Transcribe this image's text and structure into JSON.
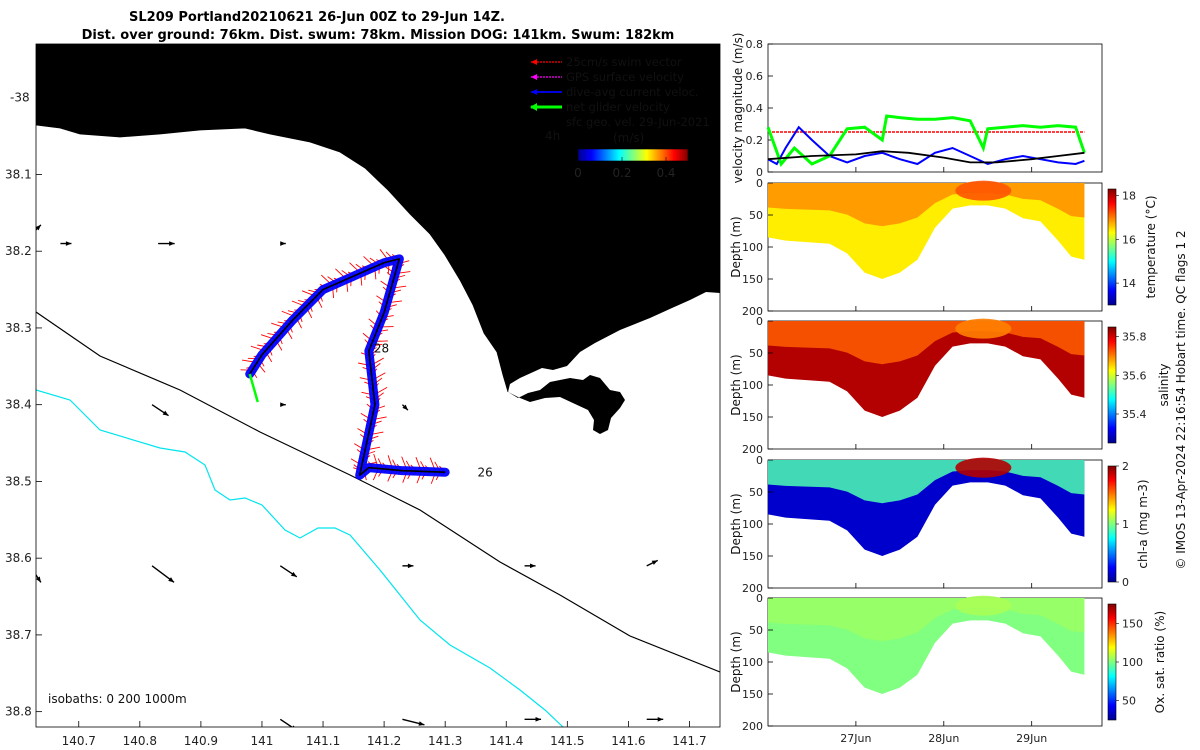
{
  "header": {
    "title_line1": "SL209 Portland20210621 26-Jun 00Z to 29-Jun 14Z.",
    "title_line2": "Dist. over ground: 76km. Dist. swum: 78km. Mission DOG: 141km. Swum: 182km"
  },
  "side_note": "© IMOS 13-Apr-2024 22:16:54 Hobart time. QC flags 1  2",
  "colors": {
    "land": "#F9C896",
    "swim": "#FF0000",
    "gps": "#FF00FF",
    "dive": "#0000FF",
    "net": "#00FF00",
    "sfc": "#000000",
    "isobath_200": "#000000",
    "isobath_1000": "#00E5EE"
  },
  "chart_data": [
    {
      "type": "map",
      "name": "track-map",
      "x_ticks": [
        "140.7",
        "140.8",
        "140.9",
        "141",
        "141.1",
        "141.2",
        "141.3",
        "141.4",
        "141.5",
        "141.6",
        "141.7"
      ],
      "y_ticks": [
        "-38",
        "38.1",
        "38.2",
        "38.3",
        "38.4",
        "38.5",
        "38.6",
        "38.7",
        "38.8"
      ],
      "xlim": [
        140.63,
        141.75
      ],
      "ylim": [
        -38.82,
        -37.93
      ],
      "legend": {
        "swim": "25cm/s swim vector",
        "gps": "GPS surface velocity",
        "dive": "dive-avg current veloc.",
        "net": "net glider velocity",
        "sfc": "sfc geo. vel. 29-Jun-2021"
      },
      "colorbar": {
        "label": "(m/s)",
        "ticks": [
          "0",
          "0.2",
          "0.4"
        ],
        "range": [
          0,
          0.5
        ],
        "interval_note": "4h"
      },
      "isobaths_label": "isobaths: 0   200  1000m",
      "day_labels": [
        {
          "text": "26",
          "lon": 141.33,
          "lat": -38.487
        },
        {
          "text": "28",
          "lon": 141.18,
          "lat": -38.327
        }
      ],
      "track": [
        [
          141.3,
          -38.488
        ],
        [
          141.23,
          -38.486
        ],
        [
          141.175,
          -38.482
        ],
        [
          141.16,
          -38.492
        ],
        [
          141.185,
          -38.4
        ],
        [
          141.175,
          -38.33
        ],
        [
          141.2,
          -38.28
        ],
        [
          141.225,
          -38.21
        ],
        [
          141.2,
          -38.215
        ],
        [
          141.1,
          -38.25
        ],
        [
          141.05,
          -38.29
        ],
        [
          141.0,
          -38.335
        ],
        [
          140.98,
          -38.36
        ]
      ],
      "current_arrows": [
        {
          "lon": 140.62,
          "lat": -38.18,
          "u": 0.02,
          "v": 0.02
        },
        {
          "lon": 140.67,
          "lat": -38.19,
          "u": 0.02,
          "v": 0.0
        },
        {
          "lon": 140.83,
          "lat": -38.19,
          "u": 0.03,
          "v": 0.0
        },
        {
          "lon": 141.03,
          "lat": -38.19,
          "u": 0.01,
          "v": 0.0
        },
        {
          "lon": 140.82,
          "lat": -38.4,
          "u": 0.03,
          "v": -0.02
        },
        {
          "lon": 141.03,
          "lat": -38.4,
          "u": 0.01,
          "v": 0.0
        },
        {
          "lon": 141.23,
          "lat": -38.4,
          "u": 0.01,
          "v": -0.01
        },
        {
          "lon": 140.62,
          "lat": -38.61,
          "u": 0.02,
          "v": -0.03
        },
        {
          "lon": 140.82,
          "lat": -38.61,
          "u": 0.04,
          "v": -0.03
        },
        {
          "lon": 141.03,
          "lat": -38.61,
          "u": 0.03,
          "v": -0.02
        },
        {
          "lon": 141.23,
          "lat": -38.61,
          "u": 0.02,
          "v": 0.0
        },
        {
          "lon": 141.43,
          "lat": -38.61,
          "u": 0.02,
          "v": 0.0
        },
        {
          "lon": 141.63,
          "lat": -38.61,
          "u": 0.02,
          "v": 0.01
        },
        {
          "lon": 141.03,
          "lat": -38.81,
          "u": 0.03,
          "v": -0.02
        },
        {
          "lon": 141.23,
          "lat": -38.81,
          "u": 0.04,
          "v": -0.01
        },
        {
          "lon": 141.43,
          "lat": -38.81,
          "u": 0.03,
          "v": 0.0
        },
        {
          "lon": 141.63,
          "lat": -38.81,
          "u": 0.03,
          "v": 0.0
        }
      ]
    },
    {
      "type": "line",
      "name": "velocity-magnitude",
      "ylabel": "velocity magnitude (m/s)",
      "ylim": [
        0,
        0.8
      ],
      "y_ticks": [
        "0",
        "0.2",
        "0.4",
        "0.6",
        "0.8"
      ],
      "xlim": [
        26.0,
        29.8
      ],
      "series": [
        {
          "name": "swim",
          "color": "#FF0000",
          "x": [
            26.0,
            29.6
          ],
          "y": [
            0.25,
            0.25
          ]
        },
        {
          "name": "dive-avg",
          "color": "#0000FF",
          "x": [
            26.0,
            26.1,
            26.2,
            26.35,
            26.5,
            26.7,
            26.9,
            27.1,
            27.3,
            27.5,
            27.7,
            27.9,
            28.1,
            28.3,
            28.5,
            28.7,
            28.9,
            29.1,
            29.3,
            29.5,
            29.6
          ],
          "y": [
            0.08,
            0.05,
            0.15,
            0.28,
            0.2,
            0.1,
            0.06,
            0.1,
            0.12,
            0.08,
            0.05,
            0.12,
            0.15,
            0.1,
            0.05,
            0.08,
            0.1,
            0.08,
            0.06,
            0.05,
            0.07
          ]
        },
        {
          "name": "net",
          "color": "#00FF00",
          "x": [
            26.0,
            26.15,
            26.3,
            26.5,
            26.7,
            26.9,
            27.1,
            27.3,
            27.35,
            27.5,
            27.7,
            27.9,
            28.1,
            28.3,
            28.45,
            28.5,
            28.7,
            28.9,
            29.1,
            29.3,
            29.5,
            29.6
          ],
          "y": [
            0.28,
            0.05,
            0.15,
            0.05,
            0.1,
            0.27,
            0.28,
            0.2,
            0.35,
            0.34,
            0.33,
            0.33,
            0.34,
            0.32,
            0.15,
            0.27,
            0.28,
            0.29,
            0.28,
            0.29,
            0.28,
            0.12
          ]
        },
        {
          "name": "sfc",
          "color": "#000000",
          "x": [
            26.0,
            26.5,
            27.0,
            27.3,
            27.6,
            28.0,
            28.3,
            28.6,
            29.0,
            29.3,
            29.6
          ],
          "y": [
            0.08,
            0.1,
            0.11,
            0.13,
            0.12,
            0.09,
            0.06,
            0.06,
            0.08,
            0.1,
            0.12
          ]
        }
      ]
    },
    {
      "type": "heatmap",
      "name": "temperature-section",
      "ylabel": "Depth (m)",
      "cbar_label": "temperature (°C)",
      "y_ticks": [
        "0",
        "50",
        "100",
        "150",
        "200"
      ],
      "cbar_ticks": [
        "18",
        "16",
        "14"
      ],
      "clim": [
        13,
        18.3
      ],
      "profile": {
        "x": [
          26.0,
          26.2,
          26.4,
          26.7,
          26.9,
          27.1,
          27.3,
          27.5,
          27.7,
          27.9,
          28.1,
          28.3,
          28.5,
          28.7,
          28.9,
          29.1,
          29.3,
          29.45,
          29.6
        ],
        "max_depth": [
          85,
          90,
          92,
          95,
          110,
          140,
          150,
          140,
          120,
          70,
          40,
          35,
          35,
          40,
          55,
          60,
          90,
          115,
          120
        ]
      },
      "fill_values": {
        "top": 16.9,
        "deep": 16.4,
        "patch": 17.2
      }
    },
    {
      "type": "heatmap",
      "name": "salinity-section",
      "ylabel": "Depth (m)",
      "cbar_label": "salinity",
      "y_ticks": [
        "0",
        "50",
        "100",
        "150",
        "200"
      ],
      "cbar_ticks": [
        "35.8",
        "35.6",
        "35.4"
      ],
      "clim": [
        35.25,
        35.85
      ],
      "profile": {
        "x": [
          26.0,
          26.2,
          26.4,
          26.7,
          26.9,
          27.1,
          27.3,
          27.5,
          27.7,
          27.9,
          28.1,
          28.3,
          28.5,
          28.7,
          28.9,
          29.1,
          29.3,
          29.45,
          29.6
        ],
        "max_depth": [
          85,
          90,
          92,
          95,
          110,
          140,
          150,
          140,
          120,
          70,
          40,
          35,
          35,
          40,
          55,
          60,
          90,
          115,
          120
        ]
      },
      "fill_values": {
        "top": 35.72,
        "deep": 35.82,
        "patch": 35.7
      }
    },
    {
      "type": "heatmap",
      "name": "chla-section",
      "ylabel": "Depth (m)",
      "cbar_label": "chl-a (mg m-3)",
      "y_ticks": [
        "0",
        "50",
        "100",
        "150",
        "200"
      ],
      "cbar_ticks": [
        "2",
        "1",
        "0"
      ],
      "clim": [
        0,
        2
      ],
      "profile": {
        "x": [
          26.0,
          26.2,
          26.4,
          26.7,
          26.9,
          27.1,
          27.3,
          27.5,
          27.7,
          27.9,
          28.1,
          28.3,
          28.5,
          28.7,
          28.9,
          29.1,
          29.3,
          29.45,
          29.6
        ],
        "max_depth": [
          85,
          90,
          92,
          95,
          110,
          140,
          150,
          140,
          120,
          70,
          40,
          35,
          35,
          40,
          55,
          60,
          90,
          115,
          120
        ]
      },
      "fill_values": {
        "top": 0.9,
        "deep": 0.15,
        "patch": 1.9
      }
    },
    {
      "type": "heatmap",
      "name": "oxygen-section",
      "ylabel": "Depth (m)",
      "cbar_label": "Ox. sat. ratio (%)",
      "y_ticks": [
        "0",
        "50",
        "100",
        "150",
        "200"
      ],
      "cbar_ticks": [
        "150",
        "100",
        "50"
      ],
      "clim": [
        25,
        175
      ],
      "profile": {
        "x": [
          26.0,
          26.2,
          26.4,
          26.7,
          26.9,
          27.1,
          27.3,
          27.5,
          27.7,
          27.9,
          28.1,
          28.3,
          28.5,
          28.7,
          28.9,
          29.1,
          29.3,
          29.45,
          29.6
        ],
        "max_depth": [
          85,
          90,
          92,
          95,
          110,
          140,
          150,
          140,
          120,
          70,
          40,
          35,
          35,
          40,
          55,
          60,
          90,
          115,
          120
        ]
      },
      "fill_values": {
        "top": 104,
        "deep": 100,
        "patch": 106
      }
    }
  ],
  "x_date_ticks": [
    {
      "label": "27Jun",
      "x": 27.0
    },
    {
      "label": "28Jun",
      "x": 28.0
    },
    {
      "label": "29Jun",
      "x": 29.0
    }
  ],
  "date_range": [
    26.0,
    29.8
  ]
}
